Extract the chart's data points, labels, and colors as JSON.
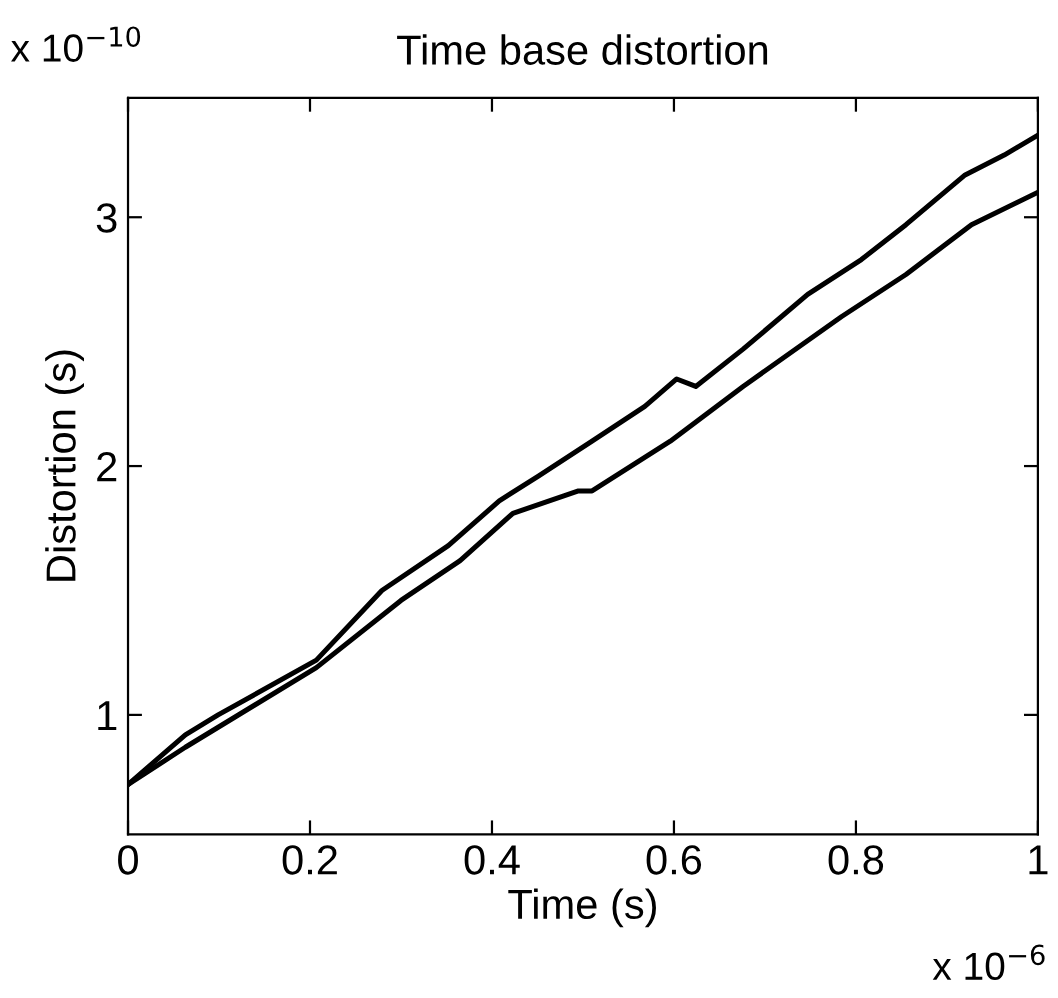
{
  "chart_data": {
    "type": "line",
    "title": "Time base distortion",
    "xlabel": "Time (s)",
    "ylabel": "Distortion (s)",
    "annotations": [
      "x 10$^{−10}$",
      "x 10$^{−6}$"
    ],
    "xlim": [
      0,
      1
    ],
    "xticks": [
      0,
      0.2,
      0.4,
      0.6,
      0.8,
      1
    ],
    "ylim": [
      0.52,
      3.48
    ],
    "yticks": [
      1,
      2,
      3
    ],
    "grid": false,
    "legend": false,
    "marker": "none",
    "line_style": "solid",
    "series": [
      {
        "color": "#000000",
        "x": [
          0,
          0.063,
          0.099,
          0.207,
          0.279,
          0.352,
          0.408,
          0.451,
          0.51,
          0.568,
          0.603,
          0.624,
          0.676,
          0.747,
          0.806,
          0.855,
          0.92,
          0.963,
          1.0
        ],
        "values": [
          0.72,
          0.92,
          1.0,
          1.22,
          1.5,
          1.68,
          1.86,
          1.96,
          2.1,
          2.24,
          2.35,
          2.32,
          2.47,
          2.69,
          2.83,
          2.97,
          3.17,
          3.25,
          3.33
        ]
      },
      {
        "color": "#000000",
        "x": [
          0,
          0.063,
          0.207,
          0.3,
          0.365,
          0.423,
          0.495,
          0.51,
          0.596,
          0.676,
          0.784,
          0.855,
          0.927,
          1.0
        ],
        "values": [
          0.72,
          0.87,
          1.19,
          1.46,
          1.62,
          1.81,
          1.9,
          1.9,
          2.1,
          2.32,
          2.6,
          2.77,
          2.97,
          3.1
        ]
      }
    ]
  }
}
